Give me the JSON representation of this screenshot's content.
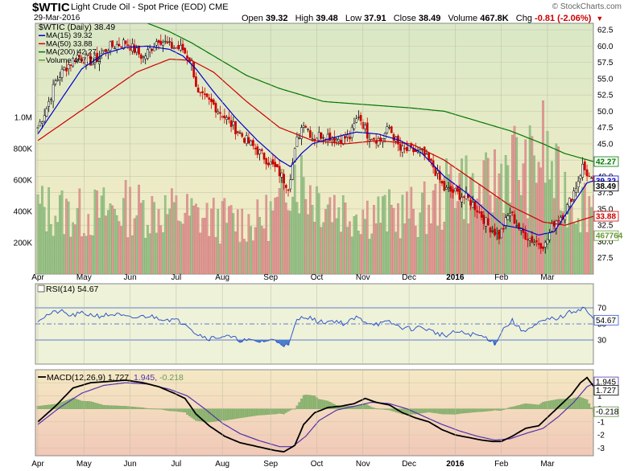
{
  "header": {
    "symbol": "$WTIC",
    "company": "Light Crude Oil - Spot Price (EOD)",
    "exchange": "CME",
    "date": "29-Mar-2016",
    "watermark": "© StockCharts.com",
    "open_label": "Open",
    "open": "39.32",
    "high_label": "High",
    "high": "39.48",
    "low_label": "Low",
    "low": "37.91",
    "close_label": "Close",
    "close": "38.49",
    "volume_label": "Volume",
    "volume": "467.8K",
    "chg_label": "Chg",
    "chg": "-0.81 (-2.06%)",
    "chg_color": "#cc0000"
  },
  "chart_data": {
    "type": "candlestick",
    "x_labels": [
      "Apr",
      "May",
      "Jun",
      "Jul",
      "Aug",
      "Sep",
      "Oct",
      "Nov",
      "Dec",
      "2016",
      "Feb",
      "Mar"
    ],
    "price_panel": {
      "legend": [
        "$WTIC (Daily) 38.49",
        "MA(15) 39.32",
        "MA(50) 33.88",
        "MA(200) 42.27",
        "Volume 467,764"
      ],
      "legend_colors": [
        "#000000",
        "#0000cc",
        "#cc0000",
        "#007700",
        "#669933"
      ],
      "y_ticks": [
        27.5,
        30.0,
        32.5,
        35.0,
        37.5,
        40.0,
        42.5,
        45.0,
        47.5,
        50.0,
        52.5,
        55.0,
        57.5,
        60.0,
        62.5
      ],
      "y_range": [
        25.0,
        63.5
      ],
      "volume_ticks": [
        "200K",
        "400K",
        "600K",
        "800K",
        "1.0M"
      ],
      "volume_tick_values": [
        200000,
        400000,
        600000,
        800000,
        1000000
      ],
      "volume_range": [
        0,
        1600000
      ],
      "tags": [
        {
          "label": "42.27",
          "value": 42.27,
          "color": "#007700"
        },
        {
          "label": "39.32",
          "value": 39.32,
          "color": "#0000cc"
        },
        {
          "label": "38.49",
          "value": 38.49,
          "color": "#000000"
        },
        {
          "label": "33.88",
          "value": 33.88,
          "color": "#cc0000"
        },
        {
          "label": "467764",
          "value": 30.9,
          "color": "#669933"
        }
      ],
      "close_anchors": [
        [
          0,
          47.5
        ],
        [
          4,
          50.5
        ],
        [
          8,
          54.5
        ],
        [
          12,
          56.5
        ],
        [
          18,
          58.5
        ],
        [
          25,
          57.5
        ],
        [
          32,
          59.8
        ],
        [
          40,
          60.6
        ],
        [
          48,
          58.2
        ],
        [
          55,
          61.2
        ],
        [
          60,
          60.0
        ],
        [
          66,
          59.5
        ],
        [
          70,
          57.5
        ],
        [
          73,
          52.5
        ],
        [
          80,
          51.0
        ],
        [
          88,
          48.0
        ],
        [
          95,
          45.5
        ],
        [
          103,
          43.0
        ],
        [
          110,
          40.5
        ],
        [
          114,
          38.5
        ],
        [
          118,
          45.5
        ],
        [
          121,
          48.5
        ],
        [
          125,
          46.0
        ],
        [
          130,
          46.5
        ],
        [
          136,
          45.8
        ],
        [
          142,
          46.0
        ],
        [
          146,
          49.5
        ],
        [
          150,
          46.5
        ],
        [
          156,
          45.5
        ],
        [
          160,
          47.5
        ],
        [
          165,
          44.0
        ],
        [
          170,
          44.0
        ],
        [
          175,
          43.5
        ],
        [
          180,
          41.5
        ],
        [
          185,
          38.0
        ],
        [
          190,
          37.5
        ],
        [
          196,
          36.5
        ],
        [
          200,
          35.0
        ],
        [
          205,
          32.5
        ],
        [
          210,
          30.8
        ],
        [
          215,
          34.5
        ],
        [
          220,
          31.5
        ],
        [
          226,
          30.0
        ],
        [
          231,
          29.5
        ],
        [
          235,
          33.0
        ],
        [
          240,
          34.5
        ],
        [
          245,
          38.5
        ],
        [
          248,
          41.5
        ],
        [
          250,
          40.5
        ],
        [
          253,
          38.5
        ]
      ],
      "ma15_anchors": [
        [
          0,
          46.5
        ],
        [
          10,
          51.5
        ],
        [
          20,
          56.5
        ],
        [
          30,
          58.8
        ],
        [
          40,
          59.8
        ],
        [
          50,
          60.0
        ],
        [
          60,
          59.5
        ],
        [
          66,
          58.5
        ],
        [
          72,
          56.5
        ],
        [
          80,
          53.0
        ],
        [
          90,
          49.0
        ],
        [
          100,
          45.5
        ],
        [
          110,
          42.5
        ],
        [
          115,
          41.5
        ],
        [
          120,
          43.5
        ],
        [
          125,
          45.0
        ],
        [
          135,
          46.0
        ],
        [
          145,
          46.8
        ],
        [
          155,
          46.5
        ],
        [
          165,
          45.5
        ],
        [
          175,
          43.5
        ],
        [
          185,
          40.0
        ],
        [
          195,
          37.5
        ],
        [
          205,
          34.5
        ],
        [
          212,
          32.5
        ],
        [
          220,
          32.0
        ],
        [
          228,
          31.0
        ],
        [
          235,
          31.5
        ],
        [
          243,
          35.5
        ],
        [
          250,
          39.0
        ],
        [
          253,
          39.32
        ]
      ],
      "ma50_anchors": [
        [
          0,
          45.5
        ],
        [
          15,
          49.0
        ],
        [
          30,
          52.5
        ],
        [
          45,
          56.0
        ],
        [
          60,
          58.0
        ],
        [
          70,
          57.8
        ],
        [
          80,
          56.0
        ],
        [
          95,
          51.5
        ],
        [
          110,
          47.5
        ],
        [
          125,
          45.5
        ],
        [
          140,
          45.0
        ],
        [
          155,
          45.5
        ],
        [
          170,
          45.0
        ],
        [
          185,
          42.5
        ],
        [
          200,
          39.0
        ],
        [
          215,
          35.5
        ],
        [
          230,
          33.0
        ],
        [
          240,
          32.5
        ],
        [
          253,
          33.88
        ]
      ],
      "ma200_anchors": [
        [
          50,
          63.5
        ],
        [
          60,
          62.2
        ],
        [
          70,
          60.5
        ],
        [
          80,
          58.5
        ],
        [
          95,
          55.5
        ],
        [
          110,
          53.5
        ],
        [
          130,
          51.5
        ],
        [
          150,
          51.0
        ],
        [
          170,
          50.5
        ],
        [
          185,
          50.0
        ],
        [
          200,
          48.5
        ],
        [
          215,
          47.0
        ],
        [
          230,
          45.0
        ],
        [
          240,
          43.5
        ],
        [
          253,
          42.27
        ]
      ],
      "volume_anchors": [
        [
          0,
          420000
        ],
        [
          20,
          380000
        ],
        [
          40,
          420000
        ],
        [
          60,
          400000
        ],
        [
          80,
          350000
        ],
        [
          100,
          330000
        ],
        [
          110,
          420000
        ],
        [
          115,
          700000
        ],
        [
          125,
          520000
        ],
        [
          140,
          410000
        ],
        [
          160,
          380000
        ],
        [
          175,
          400000
        ],
        [
          185,
          480000
        ],
        [
          190,
          650000
        ],
        [
          200,
          480000
        ],
        [
          210,
          620000
        ],
        [
          215,
          750000
        ],
        [
          222,
          620000
        ],
        [
          230,
          800000
        ],
        [
          236,
          580000
        ],
        [
          245,
          450000
        ],
        [
          253,
          470000
        ]
      ]
    },
    "rsi_panel": {
      "legend": "RSI(14) 54.67",
      "y_ticks": [
        30,
        50,
        70
      ],
      "y_range": [
        0,
        100
      ],
      "tags": [
        {
          "label": "54.67",
          "value": 54.67
        }
      ],
      "anchors": [
        [
          0,
          55
        ],
        [
          5,
          62
        ],
        [
          10,
          66
        ],
        [
          15,
          60
        ],
        [
          20,
          63
        ],
        [
          28,
          60
        ],
        [
          35,
          62
        ],
        [
          42,
          57
        ],
        [
          50,
          60
        ],
        [
          56,
          57
        ],
        [
          62,
          55
        ],
        [
          68,
          50
        ],
        [
          72,
          38
        ],
        [
          78,
          32
        ],
        [
          85,
          35
        ],
        [
          92,
          30
        ],
        [
          100,
          28
        ],
        [
          108,
          30
        ],
        [
          114,
          22
        ],
        [
          118,
          55
        ],
        [
          122,
          60
        ],
        [
          128,
          52
        ],
        [
          135,
          54
        ],
        [
          140,
          50
        ],
        [
          145,
          58
        ],
        [
          150,
          52
        ],
        [
          155,
          50
        ],
        [
          160,
          52
        ],
        [
          165,
          46
        ],
        [
          170,
          44
        ],
        [
          175,
          46
        ],
        [
          180,
          40
        ],
        [
          186,
          35
        ],
        [
          190,
          40
        ],
        [
          195,
          38
        ],
        [
          200,
          36
        ],
        [
          205,
          32
        ],
        [
          208,
          26
        ],
        [
          212,
          44
        ],
        [
          216,
          54
        ],
        [
          220,
          42
        ],
        [
          225,
          45
        ],
        [
          229,
          52
        ],
        [
          233,
          56
        ],
        [
          238,
          58
        ],
        [
          242,
          64
        ],
        [
          246,
          68
        ],
        [
          249,
          70
        ],
        [
          251,
          62
        ],
        [
          253,
          54.67
        ]
      ]
    },
    "macd_panel": {
      "legend_prefix": "MACD(12,26,9)",
      "macd": "1.727",
      "signal": "1.945",
      "histogram": "-0.218",
      "y_ticks": [
        -3,
        -2,
        -1,
        0,
        1,
        2
      ],
      "y_range": [
        -3.6,
        3.0
      ],
      "tags": [
        {
          "label": "1.945",
          "value": 1.945
        },
        {
          "label": "1.727",
          "value": 1.727
        },
        {
          "label": "-0.218",
          "value": -0.218
        }
      ],
      "macd_anchors": [
        [
          0,
          -1.0
        ],
        [
          8,
          0.2
        ],
        [
          16,
          1.6
        ],
        [
          24,
          2.0
        ],
        [
          32,
          2.1
        ],
        [
          40,
          2.2
        ],
        [
          48,
          2.0
        ],
        [
          55,
          1.7
        ],
        [
          62,
          1.2
        ],
        [
          67,
          0.8
        ],
        [
          72,
          -0.4
        ],
        [
          78,
          -1.3
        ],
        [
          85,
          -2.1
        ],
        [
          92,
          -2.6
        ],
        [
          100,
          -2.9
        ],
        [
          108,
          -3.2
        ],
        [
          112,
          -3.3
        ],
        [
          117,
          -2.8
        ],
        [
          121,
          -1.2
        ],
        [
          126,
          -0.3
        ],
        [
          132,
          0.1
        ],
        [
          138,
          0.2
        ],
        [
          144,
          0.4
        ],
        [
          149,
          0.8
        ],
        [
          154,
          0.5
        ],
        [
          160,
          0.3
        ],
        [
          166,
          -0.3
        ],
        [
          172,
          -0.7
        ],
        [
          178,
          -1.0
        ],
        [
          184,
          -1.6
        ],
        [
          190,
          -2.0
        ],
        [
          196,
          -2.2
        ],
        [
          202,
          -2.4
        ],
        [
          207,
          -2.5
        ],
        [
          211,
          -2.5
        ],
        [
          216,
          -2.1
        ],
        [
          222,
          -1.5
        ],
        [
          228,
          -1.3
        ],
        [
          233,
          -0.5
        ],
        [
          238,
          0.3
        ],
        [
          243,
          1.1
        ],
        [
          247,
          2.0
        ],
        [
          250,
          2.4
        ],
        [
          253,
          1.727
        ]
      ],
      "signal_anchors": [
        [
          0,
          -1.2
        ],
        [
          10,
          0.1
        ],
        [
          20,
          1.2
        ],
        [
          30,
          1.8
        ],
        [
          40,
          2.0
        ],
        [
          50,
          1.9
        ],
        [
          60,
          1.5
        ],
        [
          68,
          1.0
        ],
        [
          76,
          0.0
        ],
        [
          84,
          -1.1
        ],
        [
          92,
          -1.9
        ],
        [
          100,
          -2.4
        ],
        [
          110,
          -2.9
        ],
        [
          116,
          -2.9
        ],
        [
          122,
          -2.1
        ],
        [
          128,
          -0.9
        ],
        [
          136,
          -0.1
        ],
        [
          144,
          0.2
        ],
        [
          152,
          0.5
        ],
        [
          160,
          0.4
        ],
        [
          168,
          0.0
        ],
        [
          176,
          -0.6
        ],
        [
          184,
          -1.2
        ],
        [
          192,
          -1.7
        ],
        [
          200,
          -2.1
        ],
        [
          208,
          -2.4
        ],
        [
          215,
          -2.3
        ],
        [
          222,
          -1.9
        ],
        [
          230,
          -1.5
        ],
        [
          237,
          -0.6
        ],
        [
          244,
          0.5
        ],
        [
          250,
          1.7
        ],
        [
          253,
          1.945
        ]
      ]
    }
  }
}
